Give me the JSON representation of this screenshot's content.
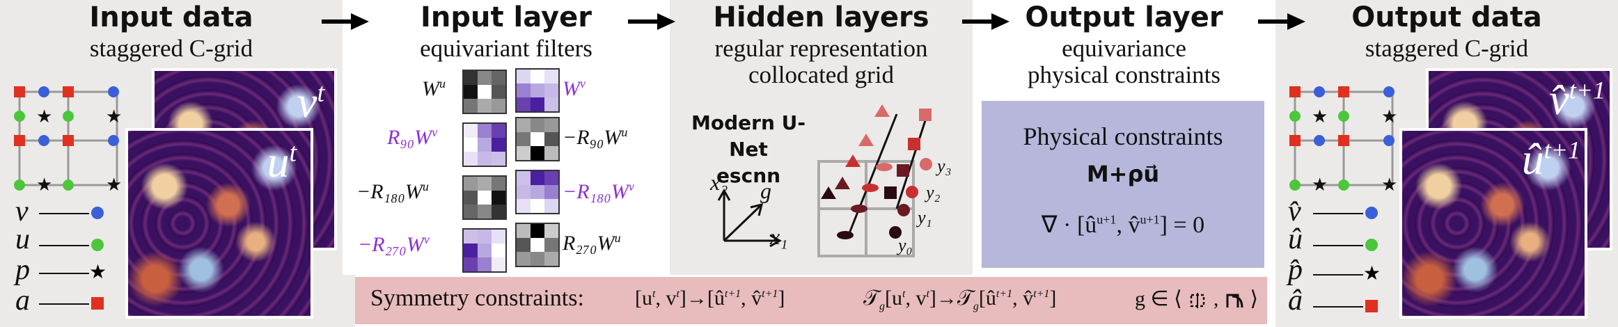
{
  "columns": {
    "input_data": {
      "title": "Input data",
      "subtitle": "staggered  C-grid",
      "field_top": "v",
      "field_top_sup": "t",
      "field_front": "u",
      "field_front_sup": "t"
    },
    "input_layer": {
      "title": "Input layer",
      "subtitle": "equivariant  filters"
    },
    "hidden_layers": {
      "title": "Hidden layers",
      "subtitle_line1": "regular  representation",
      "subtitle_line2": "collocated  grid",
      "unet_line1": "Modern U-Net",
      "unet_line2": "escnn"
    },
    "output_layer": {
      "title": "Output layer",
      "subtitle_line1": "equivariance",
      "subtitle_line2": "physical  constraints"
    },
    "output_data": {
      "title": "Output data",
      "subtitle": "staggered  C-grid",
      "field_top": "v̂",
      "field_top_sup": "t+1",
      "field_front": "û",
      "field_front_sup": "t+1"
    }
  },
  "filters": [
    {
      "label": "W",
      "sup": "u",
      "side": "left",
      "purple": false
    },
    {
      "label": "W",
      "sup": "v",
      "side": "right",
      "purple": true
    },
    {
      "label": "R₉₀W",
      "sup": "v",
      "side": "left",
      "purple": true
    },
    {
      "label": "−R₉₀W",
      "sup": "u",
      "side": "right",
      "purple": false
    },
    {
      "label": "−R₁₈₀W",
      "sup": "u",
      "side": "left",
      "purple": false
    },
    {
      "label": "−R₁₈₀W",
      "sup": "v",
      "side": "right",
      "purple": true
    },
    {
      "label": "−R₂₇₀W",
      "sup": "v",
      "side": "left",
      "purple": true
    },
    {
      "label": "R₂₇₀W",
      "sup": "u",
      "side": "right",
      "purple": false
    }
  ],
  "legend_in": [
    {
      "var": "v",
      "symbol": "circle",
      "color": "#3a5fd8"
    },
    {
      "var": "u",
      "symbol": "circle",
      "color": "#4cc63a"
    },
    {
      "var": "p",
      "symbol": "star",
      "color": "#111111"
    },
    {
      "var": "a",
      "symbol": "square",
      "color": "#e03020"
    }
  ],
  "legend_out": [
    {
      "var": "v̂",
      "symbol": "circle",
      "color": "#3a5fd8"
    },
    {
      "var": "û",
      "symbol": "circle",
      "color": "#4cc63a"
    },
    {
      "var": "p̂",
      "symbol": "star",
      "color": "#111111"
    },
    {
      "var": "â",
      "symbol": "square",
      "color": "#e03020"
    }
  ],
  "axes": {
    "x1": "x₁",
    "x2": "x₂",
    "g": "g"
  },
  "y_labels": [
    "y₃",
    "y₂",
    "y₁",
    "y₀"
  ],
  "physical": {
    "title": "Physical  constraints",
    "formula1": "M+ρu⃗",
    "formula2": "∇ · [û",
    "formula2_sup1": "u+1",
    "formula2_mid": ", v̂",
    "formula2_sup2": "u+1",
    "formula2_end": "] = 0"
  },
  "symmetry": {
    "label": "Symmetry  constraints:",
    "expr1": "[u",
    "expr1_t": "t",
    "expr1_b": ", v",
    "expr1_c": "]→[û",
    "expr1_d": ", v̂",
    "expr1_e": "]",
    "expr2": "𝒯",
    "expr2_g": "g",
    "expr2_b": "[u",
    "expr2_c": ", v",
    "expr2_d": "]→𝒯",
    "expr2_e": "[û",
    "expr2_f": ", v̂",
    "expr2_h": "]",
    "expr3": "g ∈ ⟨",
    "expr3_end": "⟩",
    "sup_t": "t",
    "sup_t1": "t+1"
  },
  "colors": {
    "red": "#e03020",
    "green": "#4cc63a",
    "blue": "#3a5fd8",
    "purple": "#8b2fd8",
    "salmon": "#d86a6a",
    "maroon": "#5a1518"
  }
}
